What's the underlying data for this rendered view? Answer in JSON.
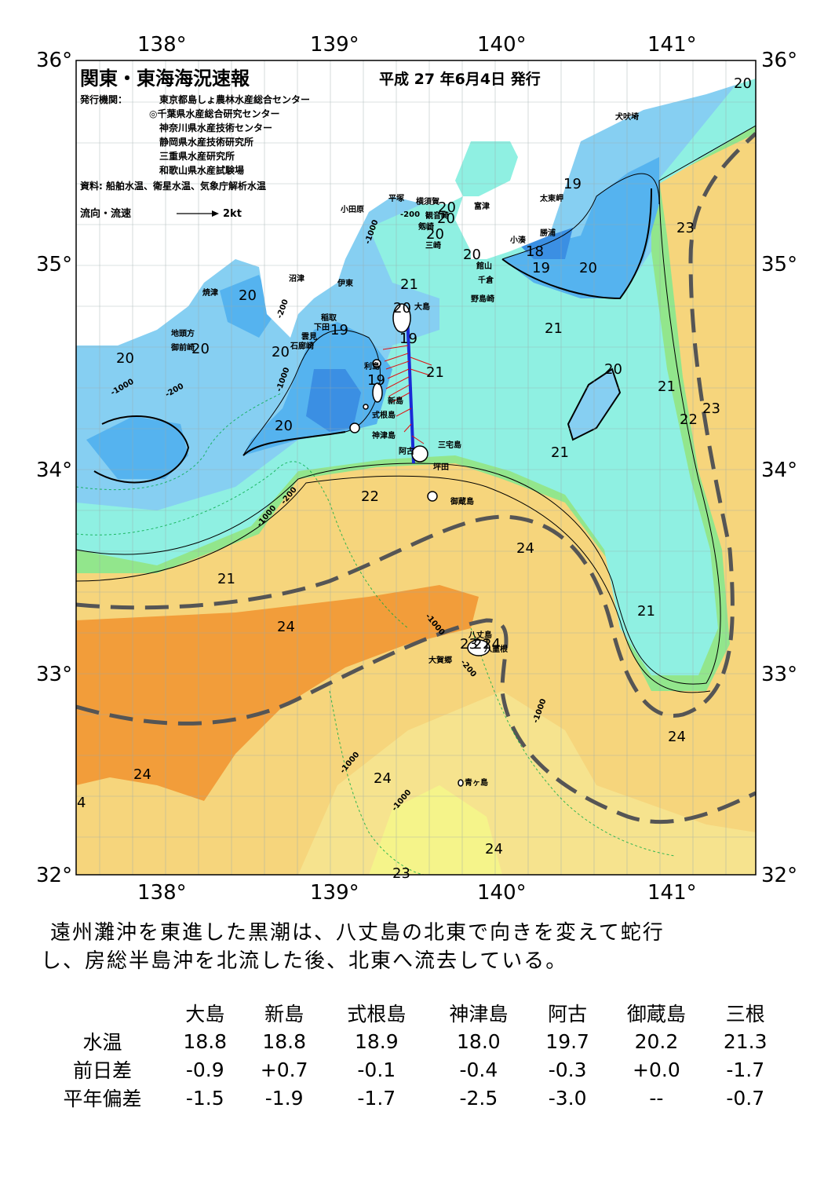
{
  "header": {
    "title": "関東・東海海況速報",
    "date": "平成 27 年6月4日 発行",
    "issuers_label": "発行機関：",
    "issuers": [
      "東京都島しょ農林水産総合センター",
      "◎千葉県水産総合研究センター",
      "神奈川県水産技術センター",
      "静岡県水産技術研究所",
      "三重県水産研究所",
      "和歌山県水産試験場"
    ],
    "source": "資料: 船舶水温、衛星水温、気象庁解析水温",
    "flow_label": "流向・流速",
    "flow_unit": "2kt"
  },
  "axes": {
    "lon_ticks": [
      "138°",
      "139°",
      "140°",
      "141°"
    ],
    "lat_ticks_left": [
      "36°",
      "35°",
      "34°",
      "33°",
      "32°"
    ],
    "lat_ticks_right": [
      "36°",
      "35°",
      "34°",
      "33°",
      "32°"
    ]
  },
  "places": [
    "犬吠埼",
    "太東岬",
    "勝浦",
    "小湊",
    "富津",
    "横須賀",
    "観音崎",
    "剱崎",
    "三崎",
    "館山",
    "千倉",
    "野島崎",
    "小田原",
    "平塚",
    "伊東",
    "沼津",
    "稲取",
    "下田",
    "雲見",
    "石廊崎",
    "焼津",
    "地頭方",
    "御前崎",
    "大島",
    "利島",
    "新島",
    "式根島",
    "神津島",
    "三宅島",
    "阿古",
    "坪田",
    "御蔵島",
    "八丈島",
    "八重根",
    "大賀郷",
    "青ヶ島"
  ],
  "isotherm_labels": [
    "20",
    "19",
    "23",
    "18",
    "19",
    "20",
    "21",
    "21",
    "21",
    "21",
    "20",
    "21",
    "22",
    "23",
    "22",
    "21",
    "24",
    "21",
    "24",
    "21",
    "24",
    "24",
    "24",
    "24",
    "20",
    "19",
    "20",
    "20",
    "20",
    "20",
    "20",
    "20",
    "19",
    "20",
    "20",
    "20",
    "19",
    "23",
    "24",
    "4",
    "23"
  ],
  "depth_labels": [
    "-200",
    "-1000",
    "-200",
    "-1000",
    "-200",
    "-1000",
    "-200",
    "-1000",
    "-1000",
    "-200",
    "-1000",
    "-1000",
    "-1000"
  ],
  "summary": [
    "遠州灘沖を東進した黒潮は、八丈島の北東で向きを変えて蛇行",
    "し、房総半島沖を北流した後、北東へ流去している。"
  ],
  "table": {
    "stations": [
      "大島",
      "新島",
      "式根島",
      "神津島",
      "阿古",
      "御蔵島",
      "三根"
    ],
    "rows": [
      {
        "label": "水温",
        "values": [
          "18.8",
          "18.8",
          "18.9",
          "18.0",
          "19.7",
          "20.2",
          "21.3"
        ]
      },
      {
        "label": "前日差",
        "values": [
          "-0.9",
          "+0.7",
          "-0.1",
          "-0.4",
          "-0.3",
          "+0.0",
          "-1.7"
        ]
      },
      {
        "label": "平年偏差",
        "values": [
          "-1.5",
          "-1.9",
          "-1.7",
          "-2.5",
          "-3.0",
          "--",
          "-0.7"
        ]
      }
    ]
  },
  "colors": {
    "t18": "#3b8fe3",
    "t19": "#55b3ef",
    "t20": "#86cff2",
    "t21": "#8ff0e2",
    "t22": "#8ee38a",
    "t23": "#f6e28c",
    "t24": "#f5c458",
    "t25": "#f29a35",
    "t26": "#f3f37d",
    "land": "#ffffff",
    "kuroshio": "#555555"
  }
}
